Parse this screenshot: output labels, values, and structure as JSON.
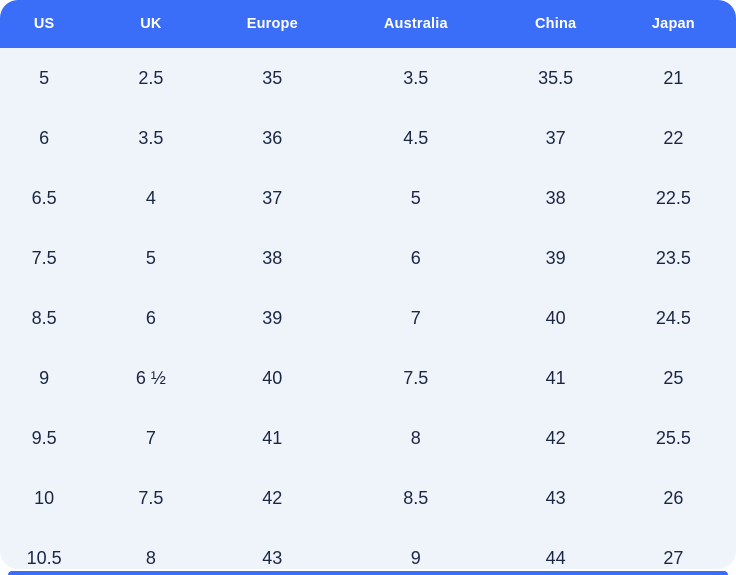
{
  "chart_data": {
    "type": "table",
    "columns": [
      "US",
      "UK",
      "Europe",
      "Australia",
      "China",
      "Japan"
    ],
    "rows": [
      [
        "5",
        "2.5",
        "35",
        "3.5",
        "35.5",
        "21"
      ],
      [
        "6",
        "3.5",
        "36",
        "4.5",
        "37",
        "22"
      ],
      [
        "6.5",
        "4",
        "37",
        "5",
        "38",
        "22.5"
      ],
      [
        "7.5",
        "5",
        "38",
        "6",
        "39",
        "23.5"
      ],
      [
        "8.5",
        "6",
        "39",
        "7",
        "40",
        "24.5"
      ],
      [
        "9",
        "6 ½",
        "40",
        "7.5",
        "41",
        "25"
      ],
      [
        "9.5",
        "7",
        "41",
        "8",
        "42",
        "25.5"
      ],
      [
        "10",
        "7.5",
        "42",
        "8.5",
        "43",
        "26"
      ],
      [
        "10.5",
        "8",
        "43",
        "9",
        "44",
        "27"
      ]
    ]
  },
  "colors": {
    "header_bg": "#3B6EF8",
    "body_bg": "#EFF4FB",
    "text": "#1B2642",
    "header_text": "#FFFFFF",
    "page_bg": "#FFFFFF"
  }
}
